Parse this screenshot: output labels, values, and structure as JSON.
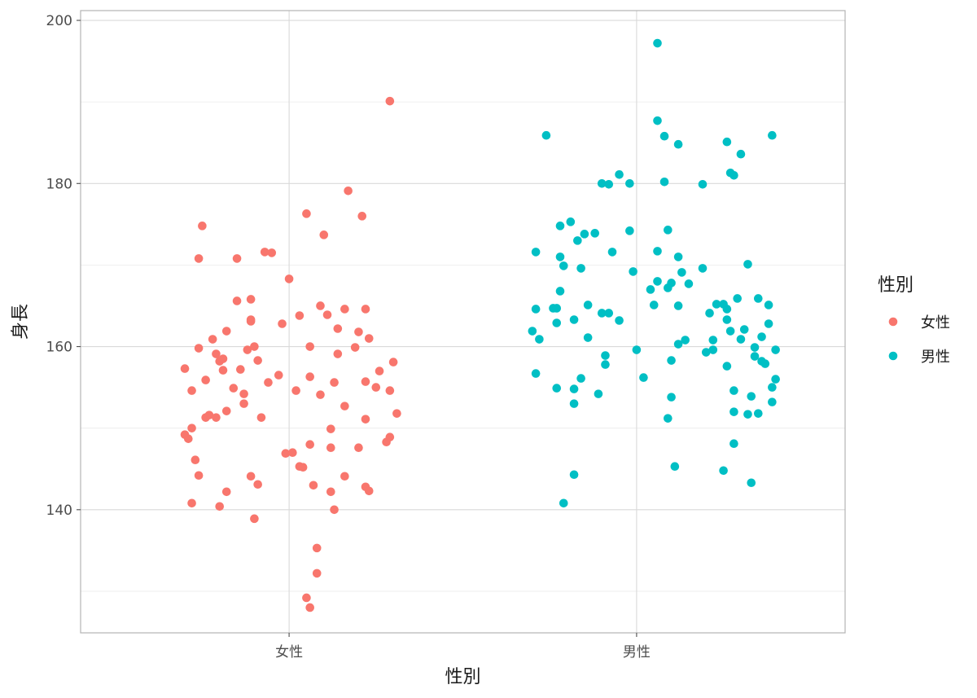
{
  "chart_data": {
    "type": "scatter",
    "title": "",
    "xlabel": "性別",
    "ylabel": "身長",
    "categories": [
      "女性",
      "男性"
    ],
    "ylim": [
      124.9,
      201.2
    ],
    "yticks": [
      140,
      160,
      180,
      200
    ],
    "grid": true,
    "legend": {
      "title": "性別",
      "placement": "right"
    },
    "series": [
      {
        "name": "女性",
        "color": "#f8766d",
        "points": [
          [
            0.7,
            157.3
          ],
          [
            0.7,
            149.2
          ],
          [
            0.71,
            148.7
          ],
          [
            0.72,
            154.6
          ],
          [
            0.72,
            140.8
          ],
          [
            0.72,
            150.0
          ],
          [
            0.73,
            146.1
          ],
          [
            0.74,
            144.2
          ],
          [
            0.74,
            159.8
          ],
          [
            0.74,
            170.8
          ],
          [
            0.75,
            174.8
          ],
          [
            0.76,
            155.9
          ],
          [
            0.76,
            151.3
          ],
          [
            0.77,
            151.6
          ],
          [
            0.78,
            160.9
          ],
          [
            0.79,
            151.3
          ],
          [
            0.79,
            159.1
          ],
          [
            0.8,
            158.2
          ],
          [
            0.8,
            140.4
          ],
          [
            0.81,
            158.5
          ],
          [
            0.81,
            157.1
          ],
          [
            0.82,
            161.9
          ],
          [
            0.82,
            152.1
          ],
          [
            0.82,
            142.2
          ],
          [
            0.84,
            154.9
          ],
          [
            0.85,
            165.6
          ],
          [
            0.85,
            170.8
          ],
          [
            0.86,
            157.2
          ],
          [
            0.87,
            154.2
          ],
          [
            0.87,
            153.0
          ],
          [
            0.88,
            159.6
          ],
          [
            0.89,
            163.1
          ],
          [
            0.89,
            163.3
          ],
          [
            0.89,
            144.1
          ],
          [
            0.89,
            165.8
          ],
          [
            0.9,
            160.0
          ],
          [
            0.9,
            138.9
          ],
          [
            0.91,
            143.1
          ],
          [
            0.91,
            158.3
          ],
          [
            0.92,
            151.3
          ],
          [
            0.93,
            171.6
          ],
          [
            0.94,
            155.6
          ],
          [
            0.95,
            171.5
          ],
          [
            0.97,
            156.5
          ],
          [
            0.98,
            162.8
          ],
          [
            0.99,
            146.9
          ],
          [
            1.0,
            168.3
          ],
          [
            1.01,
            147.0
          ],
          [
            1.02,
            154.6
          ],
          [
            1.03,
            163.8
          ],
          [
            1.03,
            145.3
          ],
          [
            1.04,
            145.2
          ],
          [
            1.05,
            176.3
          ],
          [
            1.05,
            129.2
          ],
          [
            1.06,
            128.0
          ],
          [
            1.06,
            148.0
          ],
          [
            1.06,
            160.0
          ],
          [
            1.06,
            156.3
          ],
          [
            1.07,
            143.0
          ],
          [
            1.08,
            132.2
          ],
          [
            1.08,
            135.3
          ],
          [
            1.09,
            165.0
          ],
          [
            1.09,
            154.1
          ],
          [
            1.1,
            173.7
          ],
          [
            1.11,
            163.9
          ],
          [
            1.12,
            142.2
          ],
          [
            1.12,
            149.9
          ],
          [
            1.12,
            147.6
          ],
          [
            1.13,
            140.0
          ],
          [
            1.13,
            155.6
          ],
          [
            1.14,
            162.2
          ],
          [
            1.14,
            159.1
          ],
          [
            1.16,
            164.6
          ],
          [
            1.16,
            144.1
          ],
          [
            1.16,
            152.7
          ],
          [
            1.17,
            179.1
          ],
          [
            1.19,
            159.9
          ],
          [
            1.2,
            161.8
          ],
          [
            1.2,
            147.6
          ],
          [
            1.21,
            176.0
          ],
          [
            1.22,
            164.6
          ],
          [
            1.22,
            142.8
          ],
          [
            1.22,
            151.1
          ],
          [
            1.22,
            155.7
          ],
          [
            1.23,
            142.3
          ],
          [
            1.23,
            161.0
          ],
          [
            1.25,
            155.0
          ],
          [
            1.26,
            157.0
          ],
          [
            1.28,
            148.3
          ],
          [
            1.29,
            154.6
          ],
          [
            1.29,
            148.9
          ],
          [
            1.29,
            190.1
          ],
          [
            1.3,
            158.1
          ],
          [
            1.31,
            151.8
          ]
        ]
      },
      {
        "name": "男性",
        "color": "#00bfc4",
        "points": [
          [
            1.7,
            161.9
          ],
          [
            1.71,
            156.7
          ],
          [
            1.71,
            164.6
          ],
          [
            1.71,
            171.6
          ],
          [
            1.72,
            160.9
          ],
          [
            1.74,
            185.9
          ],
          [
            1.76,
            164.7
          ],
          [
            1.77,
            154.9
          ],
          [
            1.77,
            162.9
          ],
          [
            1.77,
            164.7
          ],
          [
            1.78,
            166.8
          ],
          [
            1.78,
            174.8
          ],
          [
            1.78,
            171.0
          ],
          [
            1.79,
            169.9
          ],
          [
            1.79,
            140.8
          ],
          [
            1.81,
            175.3
          ],
          [
            1.82,
            144.3
          ],
          [
            1.82,
            153.0
          ],
          [
            1.82,
            154.8
          ],
          [
            1.82,
            163.3
          ],
          [
            1.83,
            173.0
          ],
          [
            1.84,
            169.6
          ],
          [
            1.84,
            156.1
          ],
          [
            1.85,
            173.8
          ],
          [
            1.86,
            161.1
          ],
          [
            1.86,
            165.1
          ],
          [
            1.88,
            173.9
          ],
          [
            1.89,
            154.2
          ],
          [
            1.9,
            164.1
          ],
          [
            1.9,
            180.0
          ],
          [
            1.91,
            158.9
          ],
          [
            1.91,
            157.8
          ],
          [
            1.92,
            164.1
          ],
          [
            1.92,
            179.9
          ],
          [
            1.93,
            171.6
          ],
          [
            1.95,
            163.2
          ],
          [
            1.95,
            181.1
          ],
          [
            1.98,
            174.2
          ],
          [
            1.98,
            180.0
          ],
          [
            1.99,
            169.2
          ],
          [
            2.0,
            159.6
          ],
          [
            2.02,
            156.2
          ],
          [
            2.04,
            167.0
          ],
          [
            2.05,
            165.1
          ],
          [
            2.06,
            187.7
          ],
          [
            2.06,
            197.2
          ],
          [
            2.06,
            171.7
          ],
          [
            2.06,
            168.0
          ],
          [
            2.08,
            185.8
          ],
          [
            2.08,
            180.2
          ],
          [
            2.09,
            151.2
          ],
          [
            2.09,
            167.2
          ],
          [
            2.09,
            174.3
          ],
          [
            2.1,
            153.8
          ],
          [
            2.1,
            158.3
          ],
          [
            2.1,
            167.8
          ],
          [
            2.11,
            145.3
          ],
          [
            2.12,
            184.8
          ],
          [
            2.12,
            165.0
          ],
          [
            2.12,
            171.0
          ],
          [
            2.12,
            160.3
          ],
          [
            2.13,
            169.1
          ],
          [
            2.14,
            160.8
          ],
          [
            2.15,
            167.7
          ],
          [
            2.19,
            179.9
          ],
          [
            2.19,
            169.6
          ],
          [
            2.2,
            159.3
          ],
          [
            2.21,
            164.1
          ],
          [
            2.22,
            159.6
          ],
          [
            2.22,
            160.8
          ],
          [
            2.23,
            165.2
          ],
          [
            2.25,
            144.8
          ],
          [
            2.25,
            165.2
          ],
          [
            2.26,
            164.6
          ],
          [
            2.26,
            185.1
          ],
          [
            2.26,
            157.6
          ],
          [
            2.26,
            163.3
          ],
          [
            2.27,
            161.9
          ],
          [
            2.27,
            181.3
          ],
          [
            2.28,
            181.0
          ],
          [
            2.28,
            152.0
          ],
          [
            2.28,
            148.1
          ],
          [
            2.28,
            154.6
          ],
          [
            2.29,
            165.9
          ],
          [
            2.3,
            183.6
          ],
          [
            2.3,
            160.9
          ],
          [
            2.31,
            162.1
          ],
          [
            2.32,
            170.1
          ],
          [
            2.32,
            151.7
          ],
          [
            2.33,
            143.3
          ],
          [
            2.33,
            153.9
          ],
          [
            2.34,
            158.8
          ],
          [
            2.34,
            159.9
          ],
          [
            2.35,
            151.8
          ],
          [
            2.35,
            165.9
          ],
          [
            2.36,
            158.2
          ],
          [
            2.36,
            161.2
          ],
          [
            2.37,
            157.9
          ],
          [
            2.38,
            165.1
          ],
          [
            2.38,
            162.8
          ],
          [
            2.39,
            185.9
          ],
          [
            2.39,
            153.2
          ],
          [
            2.39,
            155.0
          ],
          [
            2.4,
            159.6
          ],
          [
            2.4,
            156.0
          ]
        ]
      }
    ]
  }
}
